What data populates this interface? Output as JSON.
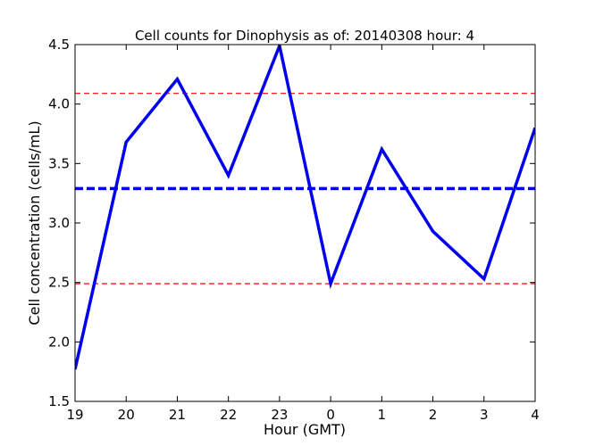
{
  "chart_data": {
    "type": "line",
    "title": "Cell counts for Dinophysis as of: 20140308 hour: 4",
    "xlabel": "Hour (GMT)",
    "ylabel": "Cell concentration (cells/mL)",
    "categories": [
      "19",
      "20",
      "21",
      "22",
      "23",
      "0",
      "1",
      "2",
      "3",
      "4"
    ],
    "series": [
      {
        "values": [
          1.77,
          3.68,
          4.21,
          3.4,
          4.49,
          2.49,
          3.62,
          2.93,
          2.53,
          3.8
        ],
        "color": "#0000ee",
        "style": "solid"
      }
    ],
    "reference_lines": [
      {
        "value": 3.29,
        "color": "#0000ee",
        "style": "dashed-thick"
      },
      {
        "value": 4.09,
        "color": "#ff0000",
        "style": "dashed-thin"
      },
      {
        "value": 2.49,
        "color": "#ff0000",
        "style": "dashed-thin"
      }
    ],
    "ylim": [
      1.5,
      4.5
    ],
    "yticks": [
      "1.5",
      "2.0",
      "2.5",
      "3.0",
      "3.5",
      "4.0",
      "4.5"
    ],
    "grid": false,
    "legend": false
  }
}
